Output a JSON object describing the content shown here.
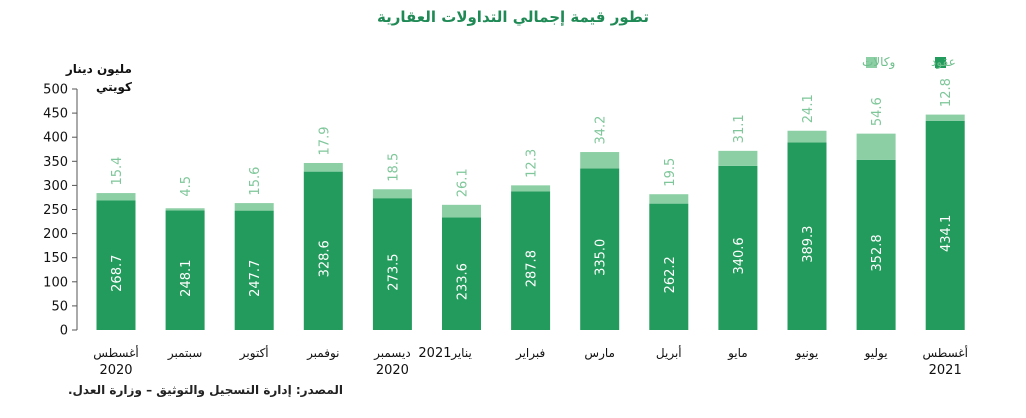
{
  "title": "تطور قيمة إجمالي التداولات العقارية",
  "unit_label": "مليون دينار كويتي",
  "source": "المصدر: إدارة التسجيل والتوثيق – وزارة العدل.",
  "colors": {
    "contracts": "#239b5c",
    "agencies": "#8ccfa5",
    "title": "#1f8a55",
    "agency_label": "#7fc79a"
  },
  "chart_data": {
    "type": "bar",
    "stacked": true,
    "title": "تطور قيمة إجمالي التداولات العقارية",
    "ylabel": "مليون دينار كويتي",
    "ylim": [
      0,
      500
    ],
    "yticks": [
      0,
      50,
      100,
      150,
      200,
      250,
      300,
      350,
      400,
      450,
      500
    ],
    "grid": false,
    "legend": "top-right",
    "categories": [
      "أغسطس",
      "سبتمبر",
      "أكتوبر",
      "نوفمبر",
      "ديسمبر",
      "يناير",
      "فبراير",
      "مارس",
      "أبريل",
      "مايو",
      "يونيو",
      "يوليو",
      "أغسطس"
    ],
    "year_labels": [
      {
        "index": 0,
        "label": "2020"
      },
      {
        "index": 4,
        "label": "2020"
      },
      {
        "index": 5,
        "label": "2021"
      },
      {
        "index": 12,
        "label": "2021"
      }
    ],
    "series": [
      {
        "name": "عقود",
        "values": [
          268.7,
          248.1,
          247.7,
          328.6,
          273.5,
          233.6,
          287.8,
          335.0,
          262.2,
          340.6,
          389.3,
          352.8,
          434.1
        ],
        "labels": [
          "268.7",
          "248.1",
          "247.7",
          "328.6",
          "273.5",
          "233.6",
          "287.8",
          "335.0",
          "262.2",
          "340.6",
          "389.3",
          "352.8",
          "434.1"
        ]
      },
      {
        "name": "وكالات",
        "values": [
          15.4,
          4.5,
          15.6,
          17.9,
          18.5,
          26.1,
          12.3,
          34.2,
          19.5,
          31.1,
          24.1,
          54.6,
          12.8
        ],
        "labels": [
          "15.4",
          "4.5",
          "15.6",
          "17.9",
          "18.5",
          "26.1",
          "12.3",
          "34.2",
          "19.5",
          "31.1",
          "24.1",
          "54.6",
          "12.8"
        ]
      }
    ]
  }
}
